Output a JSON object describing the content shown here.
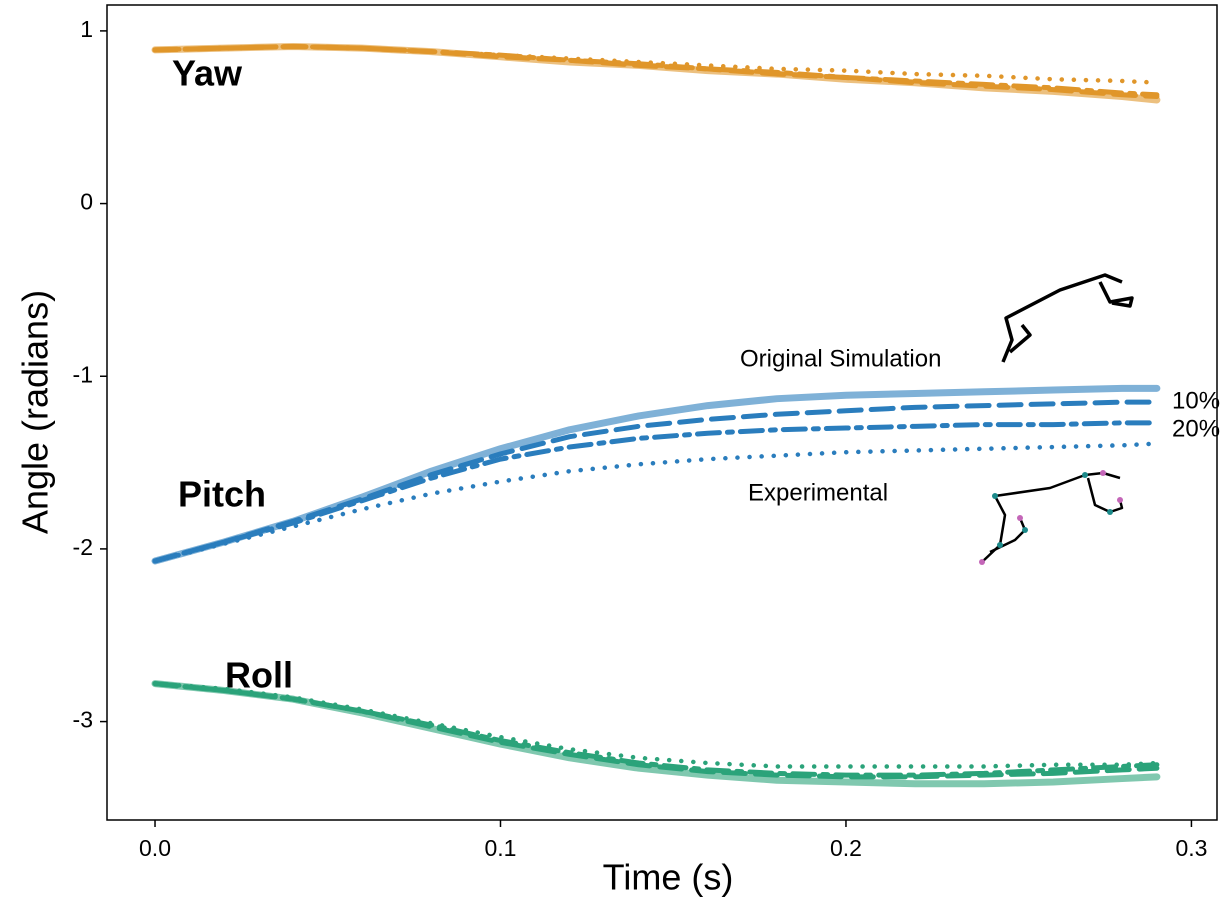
{
  "chart_data": {
    "type": "line",
    "xlabel": "Time (s)",
    "ylabel": "Angle (radians)",
    "x": [
      0,
      0.02,
      0.04,
      0.06,
      0.08,
      0.1,
      0.12,
      0.14,
      0.16,
      0.18,
      0.2,
      0.22,
      0.24,
      0.26,
      0.28,
      0.29
    ],
    "xlim": [
      -0.0139,
      0.3074
    ],
    "ylim": [
      -3.57,
      1.15
    ],
    "xticks": [
      {
        "value": 0,
        "label": "0.0"
      },
      0.1,
      0.2,
      0.3
    ],
    "yticks": [
      1,
      0,
      -1,
      -2,
      -3
    ],
    "styles": [
      {
        "label": "Original Simulation",
        "dash": "solid"
      },
      {
        "label": "10%",
        "dash": "dashed"
      },
      {
        "label": "20%",
        "dash": "dashdot"
      },
      {
        "label": "Experimental",
        "dash": "dotted"
      }
    ],
    "groups": [
      {
        "label": "Yaw",
        "color": "#e0962a",
        "label_color": "#e0962a",
        "series": [
          {
            "values": [
              0.89,
              0.9,
              0.91,
              0.9,
              0.88,
              0.85,
              0.82,
              0.8,
              0.77,
              0.75,
              0.72,
              0.7,
              0.67,
              0.65,
              0.62,
              0.6
            ]
          },
          {
            "values": [
              0.89,
              0.9,
              0.91,
              0.9,
              0.88,
              0.85,
              0.83,
              0.8,
              0.78,
              0.75,
              0.73,
              0.7,
              0.68,
              0.66,
              0.63,
              0.62
            ]
          },
          {
            "values": [
              0.89,
              0.9,
              0.91,
              0.9,
              0.88,
              0.86,
              0.83,
              0.81,
              0.78,
              0.76,
              0.73,
              0.71,
              0.69,
              0.67,
              0.64,
              0.63
            ]
          },
          {
            "values": [
              0.89,
              0.9,
              0.91,
              0.9,
              0.88,
              0.86,
              0.84,
              0.82,
              0.8,
              0.78,
              0.77,
              0.75,
              0.74,
              0.72,
              0.71,
              0.7
            ]
          }
        ]
      },
      {
        "label": "Pitch",
        "color": "#2a7dbd",
        "label_color": "#5a6cb8",
        "series": [
          {
            "values": [
              -2.07,
              -1.96,
              -1.84,
              -1.7,
              -1.55,
              -1.42,
              -1.31,
              -1.23,
              -1.17,
              -1.13,
              -1.11,
              -1.1,
              -1.09,
              -1.08,
              -1.07,
              -1.07
            ]
          },
          {
            "values": [
              -2.07,
              -1.96,
              -1.84,
              -1.71,
              -1.57,
              -1.45,
              -1.35,
              -1.29,
              -1.25,
              -1.22,
              -1.2,
              -1.18,
              -1.17,
              -1.16,
              -1.15,
              -1.15
            ]
          },
          {
            "values": [
              -2.07,
              -1.96,
              -1.85,
              -1.72,
              -1.59,
              -1.48,
              -1.41,
              -1.36,
              -1.33,
              -1.31,
              -1.3,
              -1.29,
              -1.28,
              -1.28,
              -1.27,
              -1.27
            ]
          },
          {
            "values": [
              -2.07,
              -1.97,
              -1.87,
              -1.77,
              -1.68,
              -1.61,
              -1.55,
              -1.51,
              -1.48,
              -1.46,
              -1.44,
              -1.43,
              -1.42,
              -1.41,
              -1.4,
              -1.39
            ]
          }
        ]
      },
      {
        "label": "Roll",
        "color": "#2ba37a",
        "label_color": "#2b9c72",
        "series": [
          {
            "values": [
              -2.78,
              -2.82,
              -2.87,
              -2.95,
              -3.04,
              -3.13,
              -3.21,
              -3.27,
              -3.31,
              -3.34,
              -3.35,
              -3.36,
              -3.36,
              -3.35,
              -3.33,
              -3.32
            ]
          },
          {
            "values": [
              -2.78,
              -2.82,
              -2.87,
              -2.94,
              -3.03,
              -3.12,
              -3.19,
              -3.25,
              -3.29,
              -3.31,
              -3.32,
              -3.32,
              -3.31,
              -3.3,
              -3.28,
              -3.27
            ]
          },
          {
            "values": [
              -2.78,
              -2.82,
              -2.87,
              -2.94,
              -3.02,
              -3.11,
              -3.18,
              -3.24,
              -3.28,
              -3.3,
              -3.31,
              -3.31,
              -3.3,
              -3.28,
              -3.26,
              -3.25
            ]
          },
          {
            "values": [
              -2.78,
              -2.81,
              -2.86,
              -2.93,
              -3.01,
              -3.09,
              -3.16,
              -3.21,
              -3.24,
              -3.26,
              -3.26,
              -3.26,
              -3.26,
              -3.25,
              -3.25,
              -3.24
            ]
          }
        ]
      }
    ]
  }
}
